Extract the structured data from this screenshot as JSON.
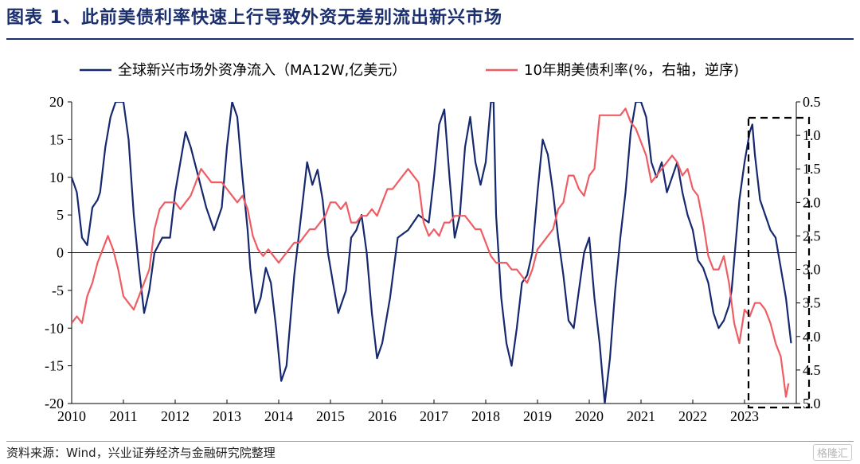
{
  "title": "图表 1、此前美债利率快速上行导致外资无差别流出新兴市场",
  "source": "资料来源：Wind，兴业证券经济与金融研究院整理",
  "watermark": "格隆汇",
  "colors": {
    "title": "#1b2f6e",
    "series_flow": "#16286e",
    "series_yield": "#ee5d63",
    "axis": "#000000",
    "highlight_box": "#000000"
  },
  "chart_data": {
    "type": "line",
    "title": "",
    "x_ticks": [
      "2010",
      "2011",
      "2012",
      "2013",
      "2014",
      "2015",
      "2016",
      "2017",
      "2018",
      "2019",
      "2020",
      "2021",
      "2022",
      "2023"
    ],
    "xlim": [
      2010.0,
      2024.0
    ],
    "y_left": {
      "label": "",
      "lim": [
        -20,
        20
      ],
      "ticks": [
        "20",
        "15",
        "10",
        "5",
        "0",
        "-5",
        "-10",
        "-15",
        "-20"
      ]
    },
    "y_right": {
      "label": "",
      "lim": [
        0.5,
        5.0
      ],
      "inverted": true,
      "ticks": [
        "0.5",
        "1.0",
        "1.5",
        "2.0",
        "2.5",
        "3.0",
        "3.5",
        "4.0",
        "4.5",
        "5.0"
      ]
    },
    "legend_position": "top",
    "annotation": "dashed box highlighting 2023",
    "series": [
      {
        "name": "全球新兴市场外资净流入（MA12W,亿美元）",
        "axis": "left",
        "color": "#16286e",
        "points": [
          [
            2010.0,
            10
          ],
          [
            2010.1,
            8
          ],
          [
            2010.2,
            2
          ],
          [
            2010.3,
            1
          ],
          [
            2010.4,
            6
          ],
          [
            2010.5,
            7
          ],
          [
            2010.55,
            8
          ],
          [
            2010.65,
            14
          ],
          [
            2010.75,
            18
          ],
          [
            2010.85,
            20
          ],
          [
            2011.0,
            20
          ],
          [
            2011.1,
            15
          ],
          [
            2011.2,
            5
          ],
          [
            2011.3,
            -2
          ],
          [
            2011.4,
            -8
          ],
          [
            2011.5,
            -5
          ],
          [
            2011.6,
            0
          ],
          [
            2011.75,
            2
          ],
          [
            2011.9,
            2
          ],
          [
            2012.0,
            8
          ],
          [
            2012.1,
            12
          ],
          [
            2012.2,
            16
          ],
          [
            2012.3,
            14
          ],
          [
            2012.45,
            10
          ],
          [
            2012.6,
            6
          ],
          [
            2012.75,
            3
          ],
          [
            2012.9,
            6
          ],
          [
            2013.0,
            14
          ],
          [
            2013.1,
            20
          ],
          [
            2013.2,
            18
          ],
          [
            2013.3,
            10
          ],
          [
            2013.4,
            3
          ],
          [
            2013.45,
            -2
          ],
          [
            2013.55,
            -8
          ],
          [
            2013.65,
            -6
          ],
          [
            2013.75,
            -2
          ],
          [
            2013.85,
            -4
          ],
          [
            2013.95,
            -10
          ],
          [
            2014.05,
            -17
          ],
          [
            2014.15,
            -15
          ],
          [
            2014.3,
            -3
          ],
          [
            2014.45,
            6
          ],
          [
            2014.55,
            12
          ],
          [
            2014.65,
            9
          ],
          [
            2014.75,
            11
          ],
          [
            2014.85,
            7
          ],
          [
            2014.95,
            0
          ],
          [
            2015.05,
            -4
          ],
          [
            2015.15,
            -8
          ],
          [
            2015.3,
            -5
          ],
          [
            2015.4,
            2
          ],
          [
            2015.5,
            3
          ],
          [
            2015.6,
            5
          ],
          [
            2015.7,
            0
          ],
          [
            2015.8,
            -8
          ],
          [
            2015.9,
            -14
          ],
          [
            2016.0,
            -12
          ],
          [
            2016.15,
            -6
          ],
          [
            2016.3,
            2
          ],
          [
            2016.5,
            3
          ],
          [
            2016.7,
            5
          ],
          [
            2016.9,
            4
          ],
          [
            2017.0,
            10
          ],
          [
            2017.1,
            17
          ],
          [
            2017.2,
            19
          ],
          [
            2017.3,
            10
          ],
          [
            2017.4,
            2
          ],
          [
            2017.5,
            5
          ],
          [
            2017.6,
            14
          ],
          [
            2017.7,
            18
          ],
          [
            2017.8,
            12
          ],
          [
            2017.9,
            9
          ],
          [
            2018.0,
            12
          ],
          [
            2018.1,
            20
          ],
          [
            2018.15,
            20
          ],
          [
            2018.2,
            5
          ],
          [
            2018.3,
            -6
          ],
          [
            2018.4,
            -12
          ],
          [
            2018.5,
            -15
          ],
          [
            2018.6,
            -10
          ],
          [
            2018.7,
            -4
          ],
          [
            2018.8,
            -3
          ],
          [
            2018.9,
            0
          ],
          [
            2019.0,
            8
          ],
          [
            2019.1,
            15
          ],
          [
            2019.2,
            13
          ],
          [
            2019.3,
            8
          ],
          [
            2019.4,
            2
          ],
          [
            2019.5,
            -3
          ],
          [
            2019.6,
            -9
          ],
          [
            2019.7,
            -10
          ],
          [
            2019.8,
            -5
          ],
          [
            2019.9,
            0
          ],
          [
            2020.0,
            2
          ],
          [
            2020.1,
            -6
          ],
          [
            2020.2,
            -12
          ],
          [
            2020.3,
            -20
          ],
          [
            2020.4,
            -14
          ],
          [
            2020.5,
            -5
          ],
          [
            2020.6,
            2
          ],
          [
            2020.7,
            8
          ],
          [
            2020.8,
            16
          ],
          [
            2020.9,
            20
          ],
          [
            2021.0,
            20
          ],
          [
            2021.1,
            18
          ],
          [
            2021.2,
            12
          ],
          [
            2021.3,
            10
          ],
          [
            2021.4,
            12
          ],
          [
            2021.5,
            8
          ],
          [
            2021.6,
            10
          ],
          [
            2021.7,
            12
          ],
          [
            2021.8,
            8
          ],
          [
            2021.9,
            5
          ],
          [
            2022.0,
            3
          ],
          [
            2022.1,
            -1
          ],
          [
            2022.2,
            -2
          ],
          [
            2022.3,
            -4
          ],
          [
            2022.4,
            -8
          ],
          [
            2022.5,
            -10
          ],
          [
            2022.6,
            -9
          ],
          [
            2022.7,
            -7
          ],
          [
            2022.75,
            -5
          ],
          [
            2022.8,
            -1
          ],
          [
            2022.9,
            7
          ],
          [
            2023.0,
            12
          ],
          [
            2023.1,
            16
          ],
          [
            2023.15,
            17
          ],
          [
            2023.2,
            13
          ],
          [
            2023.3,
            7
          ],
          [
            2023.4,
            5
          ],
          [
            2023.5,
            3
          ],
          [
            2023.6,
            2
          ],
          [
            2023.7,
            -2
          ],
          [
            2023.8,
            -6
          ],
          [
            2023.9,
            -12
          ]
        ]
      },
      {
        "name": "10年期美债利率(%，右轴，逆序)",
        "axis": "right",
        "color": "#ee5d63",
        "points": [
          [
            2010.0,
            3.8
          ],
          [
            2010.1,
            3.7
          ],
          [
            2010.2,
            3.8
          ],
          [
            2010.3,
            3.4
          ],
          [
            2010.4,
            3.2
          ],
          [
            2010.5,
            2.9
          ],
          [
            2010.6,
            2.7
          ],
          [
            2010.7,
            2.5
          ],
          [
            2010.8,
            2.7
          ],
          [
            2010.9,
            3.0
          ],
          [
            2011.0,
            3.4
          ],
          [
            2011.1,
            3.5
          ],
          [
            2011.2,
            3.6
          ],
          [
            2011.3,
            3.4
          ],
          [
            2011.4,
            3.2
          ],
          [
            2011.5,
            3.0
          ],
          [
            2011.6,
            2.4
          ],
          [
            2011.7,
            2.1
          ],
          [
            2011.8,
            2.0
          ],
          [
            2011.9,
            2.0
          ],
          [
            2012.0,
            2.0
          ],
          [
            2012.1,
            2.1
          ],
          [
            2012.2,
            2.0
          ],
          [
            2012.3,
            1.9
          ],
          [
            2012.4,
            1.7
          ],
          [
            2012.5,
            1.5
          ],
          [
            2012.6,
            1.6
          ],
          [
            2012.7,
            1.7
          ],
          [
            2012.8,
            1.7
          ],
          [
            2012.9,
            1.7
          ],
          [
            2013.0,
            1.8
          ],
          [
            2013.1,
            1.9
          ],
          [
            2013.2,
            2.0
          ],
          [
            2013.3,
            1.9
          ],
          [
            2013.4,
            2.1
          ],
          [
            2013.5,
            2.5
          ],
          [
            2013.6,
            2.7
          ],
          [
            2013.7,
            2.8
          ],
          [
            2013.8,
            2.7
          ],
          [
            2013.9,
            2.8
          ],
          [
            2014.0,
            2.9
          ],
          [
            2014.1,
            2.8
          ],
          [
            2014.2,
            2.7
          ],
          [
            2014.3,
            2.6
          ],
          [
            2014.4,
            2.6
          ],
          [
            2014.5,
            2.5
          ],
          [
            2014.6,
            2.4
          ],
          [
            2014.7,
            2.4
          ],
          [
            2014.8,
            2.3
          ],
          [
            2014.9,
            2.2
          ],
          [
            2015.0,
            2.0
          ],
          [
            2015.1,
            2.0
          ],
          [
            2015.2,
            2.1
          ],
          [
            2015.3,
            2.0
          ],
          [
            2015.4,
            2.3
          ],
          [
            2015.5,
            2.3
          ],
          [
            2015.6,
            2.2
          ],
          [
            2015.7,
            2.2
          ],
          [
            2015.8,
            2.1
          ],
          [
            2015.9,
            2.2
          ],
          [
            2016.0,
            2.0
          ],
          [
            2016.1,
            1.8
          ],
          [
            2016.2,
            1.8
          ],
          [
            2016.3,
            1.7
          ],
          [
            2016.4,
            1.6
          ],
          [
            2016.5,
            1.5
          ],
          [
            2016.6,
            1.6
          ],
          [
            2016.7,
            1.7
          ],
          [
            2016.8,
            2.3
          ],
          [
            2016.9,
            2.5
          ],
          [
            2017.0,
            2.4
          ],
          [
            2017.1,
            2.5
          ],
          [
            2017.2,
            2.3
          ],
          [
            2017.3,
            2.3
          ],
          [
            2017.4,
            2.2
          ],
          [
            2017.5,
            2.2
          ],
          [
            2017.6,
            2.2
          ],
          [
            2017.7,
            2.3
          ],
          [
            2017.8,
            2.4
          ],
          [
            2017.9,
            2.4
          ],
          [
            2018.0,
            2.6
          ],
          [
            2018.1,
            2.8
          ],
          [
            2018.2,
            2.9
          ],
          [
            2018.3,
            2.9
          ],
          [
            2018.4,
            2.9
          ],
          [
            2018.5,
            3.0
          ],
          [
            2018.6,
            3.0
          ],
          [
            2018.7,
            3.1
          ],
          [
            2018.8,
            3.2
          ],
          [
            2018.9,
            3.0
          ],
          [
            2019.0,
            2.7
          ],
          [
            2019.1,
            2.6
          ],
          [
            2019.2,
            2.5
          ],
          [
            2019.3,
            2.4
          ],
          [
            2019.4,
            2.1
          ],
          [
            2019.5,
            2.0
          ],
          [
            2019.6,
            1.6
          ],
          [
            2019.7,
            1.6
          ],
          [
            2019.8,
            1.8
          ],
          [
            2019.9,
            1.9
          ],
          [
            2020.0,
            1.6
          ],
          [
            2020.1,
            1.5
          ],
          [
            2020.2,
            0.7
          ],
          [
            2020.3,
            0.7
          ],
          [
            2020.4,
            0.7
          ],
          [
            2020.5,
            0.7
          ],
          [
            2020.6,
            0.7
          ],
          [
            2020.7,
            0.6
          ],
          [
            2020.8,
            0.8
          ],
          [
            2020.9,
            0.9
          ],
          [
            2021.0,
            1.1
          ],
          [
            2021.1,
            1.3
          ],
          [
            2021.2,
            1.7
          ],
          [
            2021.3,
            1.6
          ],
          [
            2021.4,
            1.5
          ],
          [
            2021.5,
            1.4
          ],
          [
            2021.6,
            1.3
          ],
          [
            2021.7,
            1.4
          ],
          [
            2021.8,
            1.6
          ],
          [
            2021.9,
            1.5
          ],
          [
            2022.0,
            1.8
          ],
          [
            2022.1,
            1.9
          ],
          [
            2022.2,
            2.3
          ],
          [
            2022.3,
            2.8
          ],
          [
            2022.4,
            3.0
          ],
          [
            2022.5,
            3.0
          ],
          [
            2022.6,
            2.8
          ],
          [
            2022.7,
            3.2
          ],
          [
            2022.8,
            3.8
          ],
          [
            2022.9,
            4.1
          ],
          [
            2023.0,
            3.6
          ],
          [
            2023.1,
            3.7
          ],
          [
            2023.2,
            3.5
          ],
          [
            2023.3,
            3.5
          ],
          [
            2023.4,
            3.6
          ],
          [
            2023.5,
            3.8
          ],
          [
            2023.6,
            4.1
          ],
          [
            2023.7,
            4.3
          ],
          [
            2023.75,
            4.6
          ],
          [
            2023.8,
            4.9
          ],
          [
            2023.85,
            4.7
          ]
        ]
      }
    ]
  }
}
